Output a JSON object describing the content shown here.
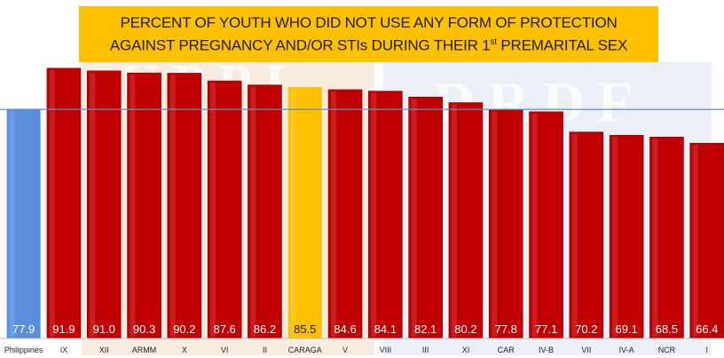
{
  "title": {
    "line1": "PERCENT OF YOUTH WHO DID NOT USE ANY FORM OF PROTECTION",
    "line2_pre": "AGAINST PREGNANCY AND/OR STIs DURING THEIR 1",
    "line2_sup": "st",
    "line2_post": " PREMARITAL SEX"
  },
  "watermarks": {
    "left": "UPPI",
    "right": "DRDF"
  },
  "colors": {
    "national": "#5b8fdc",
    "caraga": "#ffc000",
    "region": "#c00000",
    "reference_line": "#5b8fc7",
    "title_bg": "#ffc000"
  },
  "chart_data": {
    "type": "bar",
    "categories": [
      "Philippines",
      "IX",
      "XII",
      "ARMM",
      "X",
      "VI",
      "II",
      "CARAGA",
      "V",
      "VIII",
      "III",
      "XI",
      "CAR",
      "IV-B",
      "VII",
      "IV-A",
      "NCR",
      "I"
    ],
    "values": [
      77.9,
      91.9,
      91.0,
      90.3,
      90.2,
      87.6,
      86.2,
      85.5,
      84.6,
      84.1,
      82.1,
      80.2,
      77.8,
      77.1,
      70.2,
      69.1,
      68.5,
      66.4
    ],
    "value_labels": [
      "77.9",
      "91.9",
      "91.0",
      "90.3",
      "90.2",
      "87.6",
      "86.2",
      "85.5",
      "84.6",
      "84.1",
      "82.1",
      "80.2",
      "77.8",
      "77.1",
      "70.2",
      "69.1",
      "68.5",
      "66.4"
    ],
    "highlight": {
      "Philippines": "national",
      "CARAGA": "caraga"
    },
    "reference_line": 77.9,
    "ylim": [
      0,
      100
    ],
    "grid": false
  }
}
